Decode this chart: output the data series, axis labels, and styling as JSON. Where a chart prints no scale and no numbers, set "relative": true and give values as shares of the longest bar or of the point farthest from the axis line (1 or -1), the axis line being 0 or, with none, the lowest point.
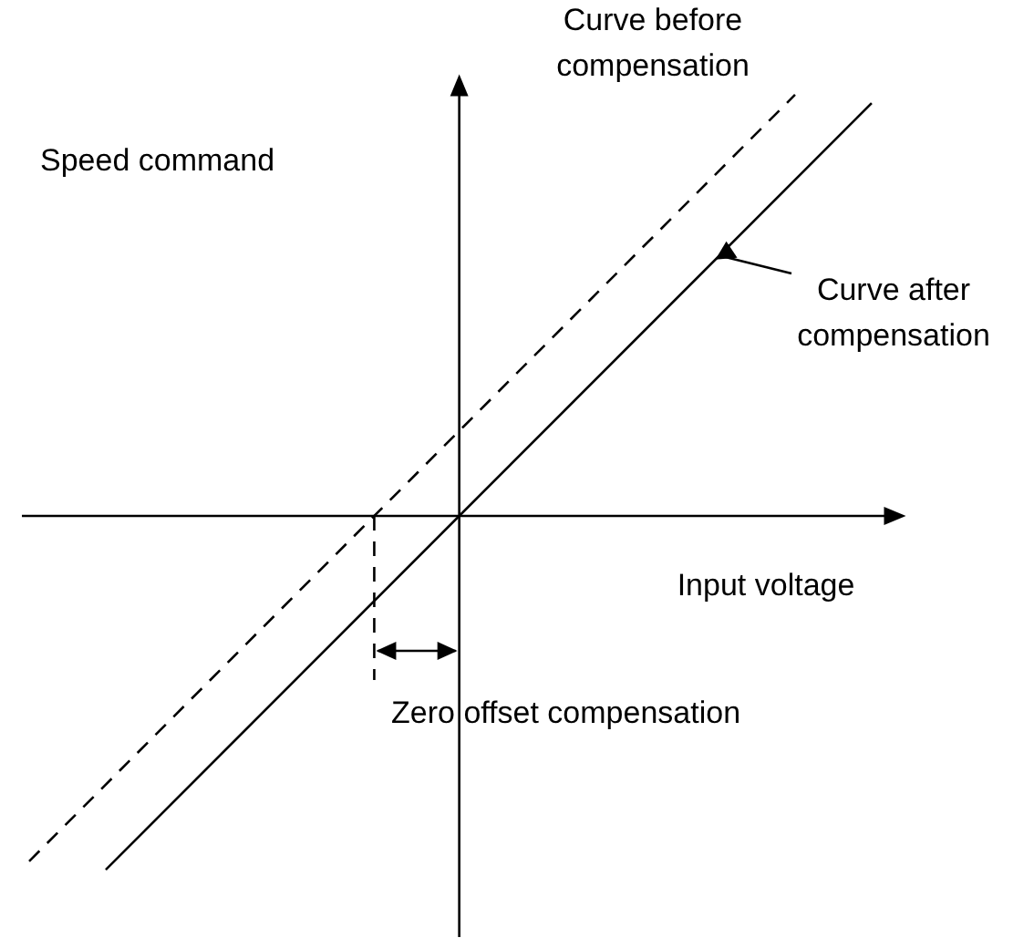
{
  "chart_data": {
    "type": "line",
    "relative": true,
    "xlabel": "Input voltage",
    "ylabel": "Speed command",
    "annotations": [
      "Zero offset compensation"
    ],
    "marker": "none",
    "categories": [
      null,
      null,
      null,
      null,
      null,
      null,
      null,
      null,
      null,
      null,
      null,
      null
    ],
    "series": [
      {
        "name": "Curve before compensation",
        "color": "#000000",
        "line_style": "dashed",
        "values": [
          -0.82,
          null,
          null,
          null,
          null,
          null,
          null,
          null,
          null,
          null,
          1,
          null
        ]
      },
      {
        "name": "Curve after compensation",
        "color": "#000000",
        "line_style": "solid",
        "values": [
          null,
          -0.84,
          null,
          null,
          null,
          null,
          null,
          null,
          null,
          null,
          null,
          0.98
        ]
      }
    ]
  }
}
